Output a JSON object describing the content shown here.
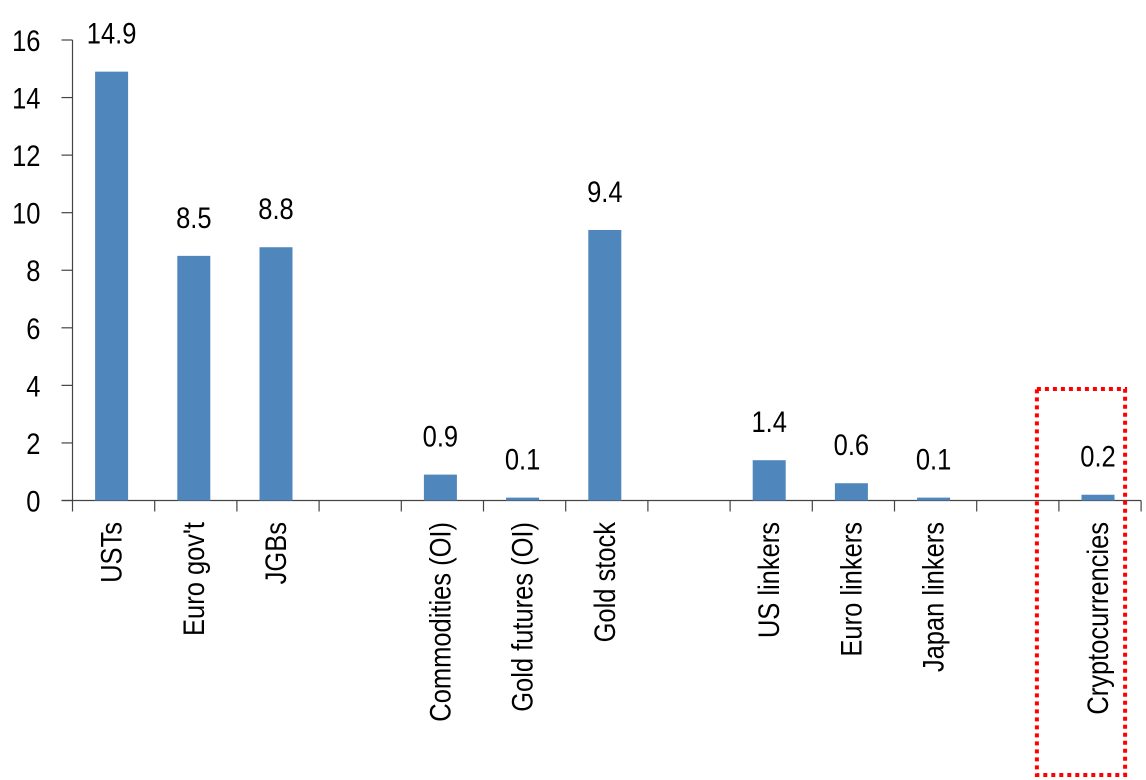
{
  "chart_data": {
    "type": "bar",
    "categories": [
      "USTs",
      "Euro gov't",
      "JGBs",
      "",
      "Commodities (OI)",
      "Gold futures (OI)",
      "Gold stock",
      "",
      "US linkers",
      "Euro linkers",
      "Japan linkers",
      "",
      "Cryptocurrencies"
    ],
    "values": [
      14.9,
      8.5,
      8.8,
      null,
      0.9,
      0.1,
      9.4,
      null,
      1.4,
      0.6,
      0.1,
      null,
      0.2
    ],
    "data_labels": [
      "14.9",
      "8.5",
      "8.8",
      "",
      "0.9",
      "0.1",
      "9.4",
      "",
      "1.4",
      "0.6",
      "0.1",
      "",
      "0.2"
    ],
    "title": "",
    "xlabel": "",
    "ylabel": "",
    "ylim": [
      0,
      16
    ],
    "yticks": [
      0,
      2,
      4,
      6,
      8,
      10,
      12,
      14,
      16
    ],
    "grid": false,
    "legend": "none",
    "bar_color": "#4F87BD",
    "highlight": {
      "category": "Cryptocurrencies",
      "style": "dotted box",
      "color": "#FF0000"
    }
  }
}
